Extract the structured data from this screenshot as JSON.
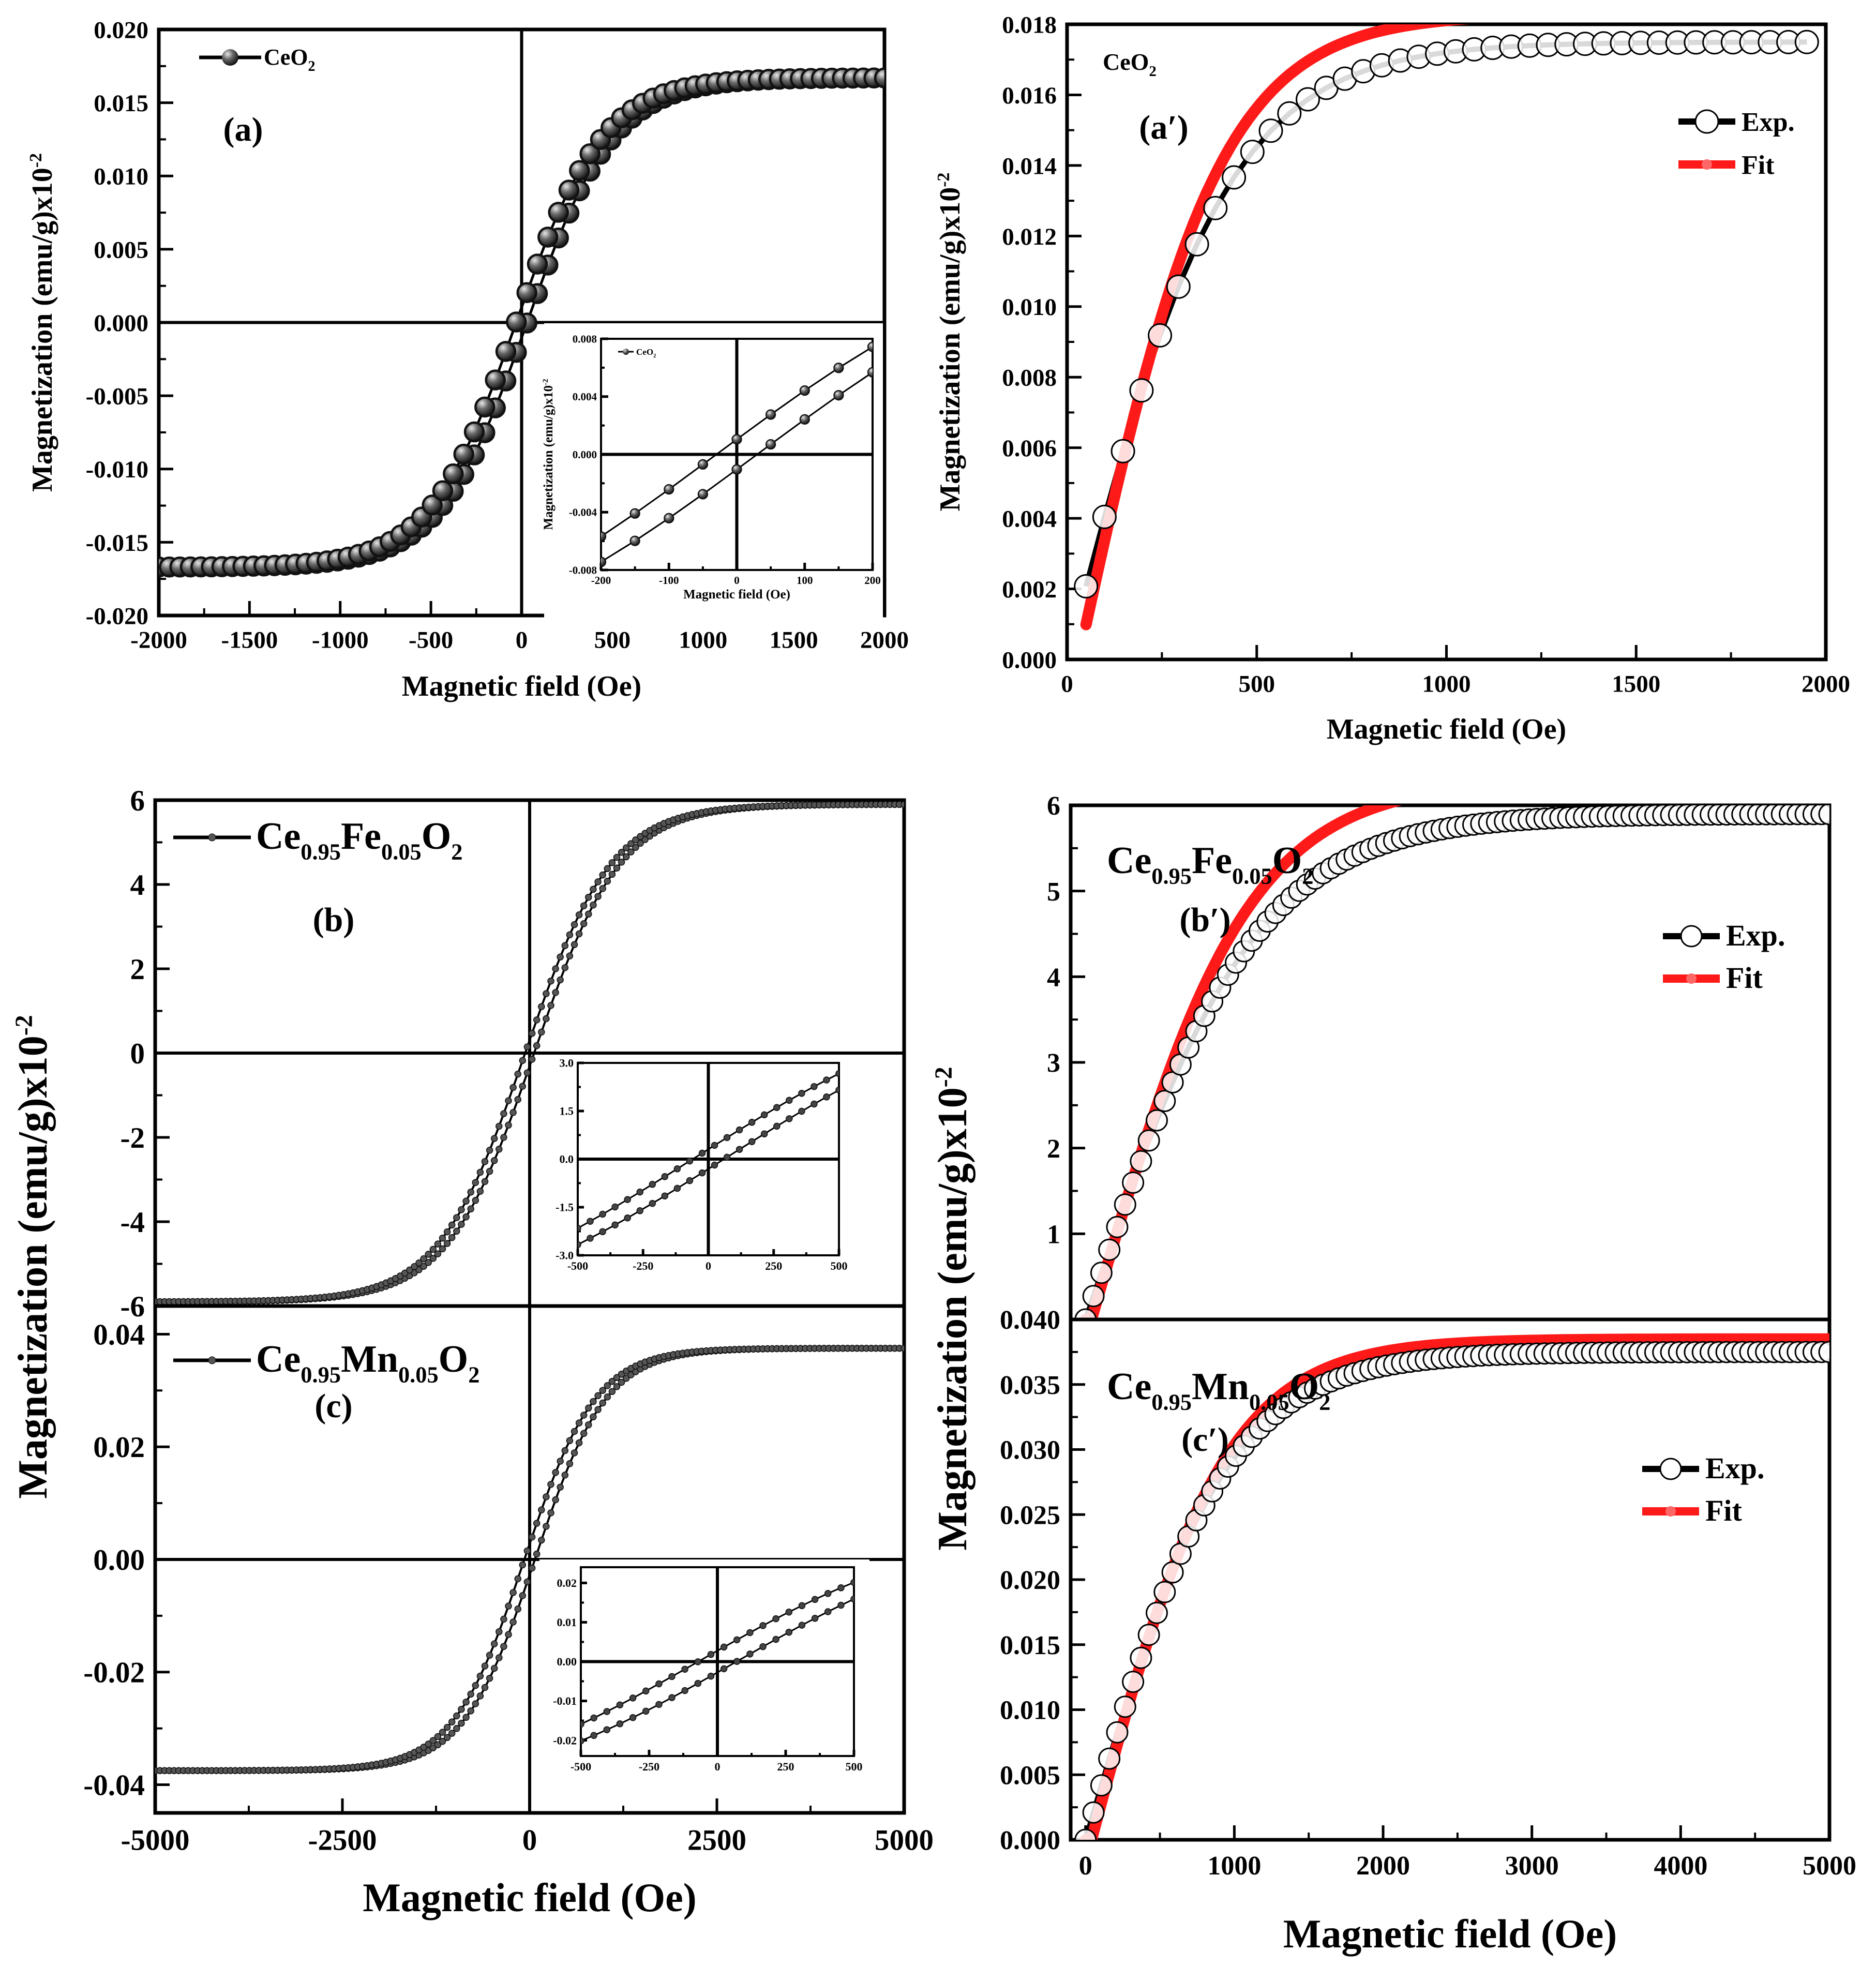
{
  "figure": {
    "description_label": "Magnetization hysteresis loops and Langevin fits"
  },
  "chart_data": [
    {
      "id": "a",
      "type": "line",
      "panel_label": "(a)",
      "title": "",
      "xlabel": "Magnetic field (Oe)",
      "ylabel": "Magnetization (emu/g)x10",
      "ylabel_sup": "-2",
      "xlim": [
        -2000,
        2000
      ],
      "ylim": [
        -0.02,
        0.02
      ],
      "xticks": [
        "-2000",
        "-1500",
        "-1000",
        "-500",
        "0",
        "500",
        "1000",
        "1500",
        "2000"
      ],
      "yticks": [
        "-0.020",
        "-0.015",
        "-0.010",
        "-0.005",
        "0.000",
        "0.005",
        "0.010",
        "0.015",
        "0.020"
      ],
      "legend": {
        "label": "CeO",
        "sub": "2",
        "position": "top-left"
      },
      "series": [
        {
          "name": "CeO2 loop",
          "Ms": 0.0167,
          "H0": 480,
          "Hc": 30,
          "marker": "filled-sphere",
          "x_range": [
            -2000,
            2000
          ],
          "n_points": 70
        }
      ],
      "inset": {
        "xlim": [
          -200,
          200
        ],
        "ylim": [
          -0.008,
          0.008
        ],
        "xticks": [
          "-200",
          "-100",
          "0",
          "100",
          "200"
        ],
        "yticks": [
          "-0.008",
          "-0.004",
          "0.000",
          "0.004",
          "0.008"
        ],
        "xlabel": "Magnetic field (Oe)",
        "ylabel": "Magnetization (emu/g)x10",
        "ylabel_sup": "-2",
        "legend": {
          "label": "CeO",
          "sub": "2"
        },
        "series": [
          {
            "name": "CeO2 inset loop",
            "Ms": 0.0167,
            "H0": 480,
            "Hc": 30,
            "n_points": 9
          }
        ]
      }
    },
    {
      "id": "a_prime",
      "type": "scatter",
      "panel_label": "(a′)",
      "xlabel": "Magnetic field (Oe)",
      "ylabel": "Magnetization (emu/g)x10",
      "ylabel_sup": "-2",
      "xlim": [
        0,
        2000
      ],
      "ylim": [
        0,
        0.018
      ],
      "xticks": [
        "0",
        "500",
        "1000",
        "1500",
        "2000"
      ],
      "yticks": [
        "0.000",
        "0.002",
        "0.004",
        "0.006",
        "0.008",
        "0.010",
        "0.012",
        "0.014",
        "0.016",
        "0.018"
      ],
      "sample_label": {
        "label": "CeO",
        "sub": "2",
        "position": "top-left"
      },
      "legend": {
        "entries": [
          "Exp.",
          "Fit"
        ],
        "position": "top-right"
      },
      "series": [
        {
          "name": "Exp.",
          "Ms": 0.0175,
          "H0": 420,
          "x_range": [
            50,
            1950
          ],
          "n_points": 40,
          "marker": "open-circle"
        },
        {
          "name": "Fit",
          "Ms": 0.0183,
          "H0": 370,
          "x_offset": 30,
          "x_range": [
            50,
            1950
          ],
          "color": "#ff1a1a"
        }
      ]
    },
    {
      "id": "b",
      "type": "line",
      "panel_label": "(b)",
      "xlabel": "",
      "ylabel": "Magnetization (emu/g)x10",
      "ylabel_sup": "-2",
      "xlim": [
        -5000,
        5000
      ],
      "ylim": [
        -6,
        6
      ],
      "xticks": [],
      "yticks": [
        "-6",
        "-4",
        "-2",
        "0",
        "2",
        "4",
        "6"
      ],
      "legend": {
        "label": "Ce",
        "parts": [
          [
            "Ce",
            ""
          ],
          [
            "0.95",
            "sub"
          ],
          [
            "Fe",
            ""
          ],
          [
            "0.05",
            "sub"
          ],
          [
            "O",
            ""
          ],
          [
            "2",
            "sub"
          ]
        ],
        "position": "top-left"
      },
      "series": [
        {
          "name": "Ce0.95Fe0.05O2 loop",
          "Ms": 5.9,
          "H0": 1150,
          "Hc": 60,
          "x_range": [
            -5000,
            5000
          ],
          "n_points": 160
        }
      ],
      "inset": {
        "xlim": [
          -500,
          500
        ],
        "ylim": [
          -3.0,
          3.0
        ],
        "xticks": [
          "-500",
          "-250",
          "0",
          "250",
          "500"
        ],
        "yticks": [
          "-3.0",
          "-1.5",
          "0.0",
          "1.5",
          "3.0"
        ],
        "series": [
          {
            "name": "Fe inset loop",
            "Ms": 5.9,
            "H0": 1150,
            "Hc": 60,
            "n_points": 22
          }
        ]
      }
    },
    {
      "id": "c",
      "type": "line",
      "panel_label": "(c)",
      "xlabel": "Magnetic field (Oe)",
      "ylabel": "",
      "xlim": [
        -5000,
        5000
      ],
      "ylim": [
        -0.045,
        0.045
      ],
      "xticks": [
        "-5000",
        "-2500",
        "0",
        "2500",
        "5000"
      ],
      "yticks": [
        "-0.04",
        "-0.02",
        "0.00",
        "0.02",
        "0.04"
      ],
      "legend": {
        "parts": [
          [
            "Ce",
            ""
          ],
          [
            "0.95",
            "sub"
          ],
          [
            "Mn",
            ""
          ],
          [
            "0.05",
            "sub"
          ],
          [
            "O",
            ""
          ],
          [
            "2",
            "sub"
          ]
        ],
        "position": "top-left"
      },
      "series": [
        {
          "name": "Ce0.95Mn0.05O2 loop",
          "Ms": 0.0375,
          "H0": 950,
          "Hc": 70,
          "x_range": [
            -5000,
            5000
          ],
          "n_points": 160
        }
      ],
      "inset": {
        "xlim": [
          -500,
          500
        ],
        "ylim": [
          -0.024,
          0.024
        ],
        "xticks": [
          "-500",
          "-250",
          "0",
          "250",
          "500"
        ],
        "yticks": [
          "-0.02",
          "-0.01",
          "0.00",
          "0.01",
          "0.02"
        ],
        "series": [
          {
            "name": "Mn inset loop",
            "Ms": 0.0375,
            "H0": 950,
            "Hc": 70,
            "n_points": 22
          }
        ]
      }
    },
    {
      "id": "b_prime",
      "type": "scatter",
      "panel_label": "(b′)",
      "xlabel": "",
      "ylabel": "Magnetization (emu/g)x10",
      "ylabel_sup": "-2",
      "xlim": [
        -100,
        5000
      ],
      "ylim": [
        0,
        6
      ],
      "xticks": [],
      "yticks": [
        "1",
        "2",
        "3",
        "4",
        "5",
        "6"
      ],
      "sample_label": {
        "parts": [
          [
            "Ce",
            ""
          ],
          [
            "0.95",
            "sub"
          ],
          [
            "Fe",
            ""
          ],
          [
            "0.05",
            "sub"
          ],
          [
            "O",
            ""
          ],
          [
            "2",
            "sub"
          ]
        ],
        "position": "top-left"
      },
      "legend": {
        "entries": [
          "Exp.",
          "Fit"
        ],
        "position": "right"
      },
      "series": [
        {
          "name": "Exp.",
          "Ms": 5.9,
          "H0": 1150,
          "x_range": [
            0,
            5000
          ],
          "n_points": 95,
          "marker": "open-circle"
        },
        {
          "name": "Fit",
          "Ms": 6.3,
          "H0": 1050,
          "x_offset": 40,
          "x_range": [
            0,
            5000
          ],
          "color": "#ff1a1a"
        }
      ]
    },
    {
      "id": "c_prime",
      "type": "scatter",
      "panel_label": "(c′)",
      "xlabel": "Magnetic field (Oe)",
      "ylabel": "",
      "xlim": [
        -100,
        5000
      ],
      "ylim": [
        0,
        0.04
      ],
      "xticks": [
        "0",
        "1000",
        "2000",
        "3000",
        "4000",
        "5000"
      ],
      "yticks": [
        "0.000",
        "0.005",
        "0.010",
        "0.015",
        "0.020",
        "0.025",
        "0.030",
        "0.035",
        "0.040"
      ],
      "sample_label": {
        "parts": [
          [
            "Ce",
            ""
          ],
          [
            "0.95",
            "sub"
          ],
          [
            "Mn",
            ""
          ],
          [
            "0.05",
            "sub"
          ],
          [
            "O",
            ""
          ],
          [
            "2",
            "sub"
          ]
        ],
        "position": "top-left"
      },
      "legend": {
        "entries": [
          "Exp.",
          "Fit"
        ],
        "position": "right"
      },
      "series": [
        {
          "name": "Exp.",
          "Ms": 0.0375,
          "H0": 950,
          "x_range": [
            0,
            5000
          ],
          "n_points": 95,
          "marker": "open-circle"
        },
        {
          "name": "Fit",
          "Ms": 0.0385,
          "H0": 900,
          "x_offset": 40,
          "x_range": [
            0,
            5000
          ],
          "color": "#ff1a1a"
        }
      ]
    }
  ]
}
